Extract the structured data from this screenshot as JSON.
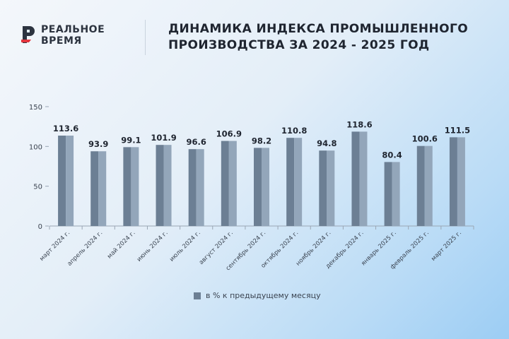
{
  "brand": {
    "line1": "РЕАЛЬНОЕ",
    "line2": "ВРЕМЯ",
    "mark_color": "#2d3440",
    "accent": "#e2343d"
  },
  "title_line1": "ДИНАМИКА ИНДЕКСА ПРОМЫШЛЕННОГО",
  "title_line2": "ПРОИЗВОДСТВА ЗА 2024 - 2025 ГОД",
  "chart_data": {
    "type": "bar",
    "categories": [
      "март 2024 г.",
      "апрель 2024 г.",
      "май 2024 г.",
      "июнь 2024 г.",
      "июль 2024 г.",
      "август 2024 г.",
      "сентябрь 2024 г.",
      "октябрь 2024 г.",
      "ноябрь 2024 г.",
      "декабрь 2024 г.",
      "январь 2025 г.",
      "февраль 2025 г.",
      "март 2025 г."
    ],
    "series": [
      {
        "name": "в % к предыдущему месяцу",
        "values": [
          113.6,
          93.9,
          99.1,
          101.9,
          96.6,
          106.9,
          98.2,
          110.8,
          94.8,
          118.6,
          80.4,
          100.6,
          111.5
        ]
      }
    ],
    "data_labels": [
      "113.6",
      "93.9",
      "99.1",
      "101.9",
      "96.6",
      "106.9",
      "98.2",
      "110.8",
      "94.8",
      "118.6",
      "80.4",
      "100.6",
      "111.5"
    ],
    "yticks": [
      0,
      50,
      100,
      150
    ],
    "ylim": [
      0,
      150
    ],
    "grid": false,
    "legend_position": "bottom-center",
    "bar_color": "#6c7f94",
    "bar_highlight": "#93a6ba"
  }
}
